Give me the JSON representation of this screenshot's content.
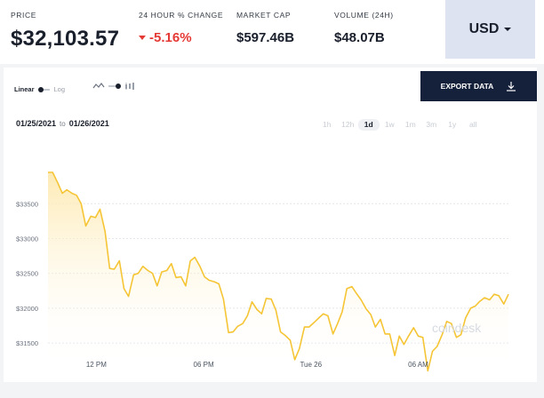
{
  "stats": {
    "price": {
      "label": "PRICE",
      "value": "$32,103.57"
    },
    "change": {
      "label": "24 HOUR % CHANGE",
      "value": "-5.16%"
    },
    "market_cap": {
      "label": "MARKET CAP",
      "value": "$597.46B"
    },
    "volume": {
      "label": "VOLUME (24H)",
      "value": "$48.07B"
    }
  },
  "currency": {
    "label": "USD"
  },
  "controls": {
    "scale_linear": "Linear",
    "scale_log": "Log",
    "export_label": "EXPORT DATA",
    "date_from": "01/25/2021",
    "date_to_word": "to",
    "date_to": "01/26/2021",
    "ranges": [
      "1h",
      "12h",
      "1d",
      "1w",
      "1m",
      "3m",
      "1y",
      "all"
    ],
    "active_range": "1d"
  },
  "watermark": "coindesk",
  "colors": {
    "line": "#f5c536",
    "down": "#e53935",
    "button": "#15203a",
    "currency_bg": "#dde3f1"
  },
  "chart_data": {
    "type": "area",
    "ylim": [
      31170,
      34230
    ],
    "yticks": [
      33500,
      33000,
      32500,
      32000,
      31500
    ],
    "ytick_labels": [
      "$33500",
      "$33000",
      "$32500",
      "$32000",
      "$31500"
    ],
    "xlim": [
      0,
      100
    ],
    "xticks": [
      {
        "x": 10.5,
        "label": "12 PM"
      },
      {
        "x": 33.8,
        "label": "06 PM"
      },
      {
        "x": 57.1,
        "label": "Tue 26"
      },
      {
        "x": 80.4,
        "label": "06 AM"
      }
    ],
    "series": [
      {
        "values": [
          [
            0.0,
            33950
          ],
          [
            1.0,
            33950
          ],
          [
            2.1,
            33800
          ],
          [
            3.1,
            33650
          ],
          [
            4.1,
            33700
          ],
          [
            5.2,
            33650
          ],
          [
            6.2,
            33620
          ],
          [
            7.2,
            33500
          ],
          [
            8.2,
            33180
          ],
          [
            9.3,
            33320
          ],
          [
            10.3,
            33300
          ],
          [
            11.3,
            33420
          ],
          [
            12.4,
            33100
          ],
          [
            13.4,
            32570
          ],
          [
            14.4,
            32560
          ],
          [
            15.5,
            32680
          ],
          [
            16.5,
            32280
          ],
          [
            17.5,
            32170
          ],
          [
            18.6,
            32480
          ],
          [
            19.6,
            32500
          ],
          [
            20.6,
            32600
          ],
          [
            21.7,
            32540
          ],
          [
            22.7,
            32500
          ],
          [
            23.7,
            32320
          ],
          [
            24.7,
            32520
          ],
          [
            25.8,
            32540
          ],
          [
            26.8,
            32640
          ],
          [
            27.8,
            32440
          ],
          [
            28.9,
            32450
          ],
          [
            29.9,
            32320
          ],
          [
            30.9,
            32680
          ],
          [
            31.9,
            32730
          ],
          [
            33.0,
            32600
          ],
          [
            34.0,
            32450
          ],
          [
            35.0,
            32400
          ],
          [
            36.1,
            32380
          ],
          [
            37.1,
            32350
          ],
          [
            38.1,
            32130
          ],
          [
            39.2,
            31650
          ],
          [
            40.2,
            31660
          ],
          [
            41.2,
            31740
          ],
          [
            42.3,
            31780
          ],
          [
            43.3,
            31890
          ],
          [
            44.3,
            32090
          ],
          [
            45.4,
            31980
          ],
          [
            46.4,
            31920
          ],
          [
            47.4,
            32140
          ],
          [
            48.5,
            32130
          ],
          [
            49.5,
            31970
          ],
          [
            50.5,
            31660
          ],
          [
            51.5,
            31610
          ],
          [
            52.6,
            31540
          ],
          [
            53.6,
            31260
          ],
          [
            54.6,
            31420
          ],
          [
            55.7,
            31730
          ],
          [
            56.7,
            31730
          ],
          [
            57.7,
            31790
          ],
          [
            58.8,
            31860
          ],
          [
            59.8,
            31920
          ],
          [
            60.8,
            31890
          ],
          [
            61.9,
            31630
          ],
          [
            62.9,
            31780
          ],
          [
            63.9,
            31950
          ],
          [
            64.9,
            32280
          ],
          [
            66.0,
            32310
          ],
          [
            67.0,
            32210
          ],
          [
            68.0,
            32120
          ],
          [
            69.1,
            31990
          ],
          [
            70.1,
            31910
          ],
          [
            71.1,
            31730
          ],
          [
            72.2,
            31840
          ],
          [
            73.2,
            31630
          ],
          [
            74.2,
            31630
          ],
          [
            75.3,
            31320
          ],
          [
            76.3,
            31600
          ],
          [
            77.3,
            31480
          ],
          [
            78.3,
            31600
          ],
          [
            79.4,
            31720
          ],
          [
            80.4,
            31600
          ],
          [
            81.4,
            31580
          ],
          [
            82.5,
            31100
          ],
          [
            83.5,
            31380
          ],
          [
            84.5,
            31450
          ],
          [
            85.6,
            31620
          ],
          [
            86.6,
            31810
          ],
          [
            87.6,
            31780
          ],
          [
            88.7,
            31580
          ],
          [
            89.7,
            31620
          ],
          [
            90.7,
            31860
          ],
          [
            91.8,
            32000
          ],
          [
            92.8,
            32030
          ],
          [
            93.8,
            32100
          ],
          [
            94.8,
            32150
          ],
          [
            95.9,
            32120
          ],
          [
            96.9,
            32200
          ],
          [
            97.9,
            32180
          ],
          [
            99.0,
            32060
          ],
          [
            100,
            32200
          ]
        ]
      }
    ]
  }
}
